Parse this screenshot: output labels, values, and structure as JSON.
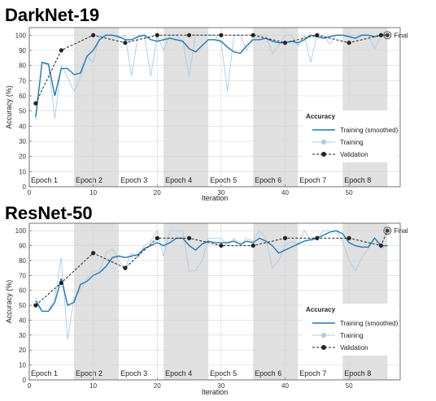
{
  "chart_data": [
    {
      "type": "line",
      "title": "DarkNet-19",
      "xlabel": "Iteration",
      "ylabel": "Accuracy (%)",
      "xlim": [
        0,
        58
      ],
      "ylim": [
        0,
        105
      ],
      "xticks": [
        0,
        10,
        20,
        30,
        40,
        50
      ],
      "yticks": [
        0,
        10,
        20,
        30,
        40,
        50,
        60,
        70,
        80,
        90,
        100
      ],
      "grid": true,
      "epochs": [
        "Epoch 1",
        "Epoch 2",
        "Epoch 3",
        "Epoch 4",
        "Epoch 5",
        "Epoch 6",
        "Epoch 7",
        "Epoch 8"
      ],
      "legend": {
        "title": "Accuracy",
        "position": "lower-right",
        "entries": [
          "Training (smoothed)",
          "Training",
          "Validation"
        ]
      },
      "final_label": "Final",
      "series": [
        {
          "name": "Training (smoothed)",
          "color": "#1f77b4",
          "x": [
            1,
            2,
            3,
            4,
            5,
            6,
            7,
            8,
            9,
            10,
            11,
            12,
            13,
            14,
            15,
            16,
            17,
            18,
            19,
            20,
            21,
            22,
            23,
            24,
            25,
            26,
            27,
            28,
            29,
            30,
            31,
            32,
            33,
            34,
            35,
            36,
            37,
            38,
            39,
            40,
            41,
            42,
            43,
            44,
            45,
            46,
            47,
            48,
            49,
            50,
            51,
            52,
            53,
            54,
            55,
            56
          ],
          "y": [
            46,
            82,
            81,
            60,
            78,
            78,
            74,
            75,
            86,
            90,
            97,
            100,
            100,
            99,
            97,
            97,
            99,
            100,
            97,
            96,
            97,
            98,
            97,
            96,
            91,
            89,
            93,
            97,
            97,
            96,
            92,
            89,
            88,
            93,
            97,
            97,
            98,
            96,
            95,
            95,
            96,
            95,
            97,
            100,
            99,
            98,
            99,
            100,
            100,
            99,
            98,
            100,
            100,
            99,
            100,
            100
          ]
        },
        {
          "name": "Training",
          "color": "#a8cbe8",
          "x": [
            1,
            2,
            3,
            4,
            5,
            6,
            7,
            8,
            9,
            10,
            11,
            12,
            13,
            14,
            15,
            16,
            17,
            18,
            19,
            20,
            21,
            22,
            23,
            24,
            25,
            26,
            27,
            28,
            29,
            30,
            31,
            32,
            33,
            34,
            35,
            36,
            37,
            38,
            39,
            40,
            41,
            42,
            43,
            44,
            45,
            46,
            47,
            48,
            49,
            50,
            51,
            52,
            53,
            54,
            55,
            56
          ],
          "y": [
            44,
            82,
            80,
            45,
            80,
            72,
            63,
            72,
            86,
            82,
            100,
            100,
            100,
            98,
            100,
            73,
            100,
            100,
            73,
            100,
            90,
            100,
            100,
            96,
            73,
            100,
            100,
            100,
            100,
            95,
            63,
            100,
            100,
            90,
            100,
            100,
            100,
            88,
            93,
            100,
            100,
            93,
            100,
            82,
            100,
            100,
            94,
            100,
            100,
            100,
            100,
            100,
            100,
            91,
            100,
            100
          ]
        },
        {
          "name": "Validation",
          "color": "#222222",
          "x": [
            1,
            5,
            10,
            15,
            20,
            25,
            30,
            35,
            40,
            45,
            50,
            55,
            56
          ],
          "y": [
            55,
            90,
            100,
            95,
            100,
            100,
            100,
            100,
            95,
            100,
            95,
            100,
            100
          ]
        }
      ]
    },
    {
      "type": "line",
      "title": "ResNet-50",
      "xlabel": "Iteration",
      "ylabel": "Accuracy (%)",
      "xlim": [
        0,
        58
      ],
      "ylim": [
        0,
        105
      ],
      "xticks": [
        0,
        10,
        20,
        30,
        40,
        50
      ],
      "yticks": [
        0,
        10,
        20,
        30,
        40,
        50,
        60,
        70,
        80,
        90,
        100
      ],
      "grid": true,
      "epochs": [
        "Epoch 1",
        "Epoch 2",
        "Epoch 3",
        "Epoch 4",
        "Epoch 5",
        "Epoch 6",
        "Epoch 7",
        "Epoch 8"
      ],
      "legend": {
        "title": "Accuracy",
        "position": "lower-right",
        "entries": [
          "Training (smoothed)",
          "Training",
          "Validation"
        ]
      },
      "final_label": "Final",
      "series": [
        {
          "name": "Training (smoothed)",
          "color": "#1f77b4",
          "x": [
            1,
            2,
            3,
            4,
            5,
            6,
            7,
            8,
            9,
            10,
            11,
            12,
            13,
            14,
            15,
            16,
            17,
            18,
            19,
            20,
            21,
            22,
            23,
            24,
            25,
            26,
            27,
            28,
            29,
            30,
            31,
            32,
            33,
            34,
            35,
            36,
            37,
            38,
            39,
            40,
            41,
            42,
            43,
            44,
            45,
            46,
            47,
            48,
            49,
            50,
            51,
            52,
            53,
            54,
            55,
            56
          ],
          "y": [
            53,
            46,
            46,
            52,
            68,
            50,
            52,
            64,
            66,
            70,
            72,
            76,
            82,
            83,
            82,
            83,
            84,
            88,
            90,
            92,
            90,
            92,
            95,
            95,
            90,
            87,
            91,
            93,
            92,
            92,
            92,
            93,
            91,
            93,
            92,
            95,
            93,
            90,
            85,
            87,
            89,
            91,
            93,
            94,
            95,
            97,
            99,
            100,
            98,
            92,
            90,
            89,
            89,
            95,
            90,
            90
          ]
        },
        {
          "name": "Training",
          "color": "#a8cbe8",
          "x": [
            1,
            2,
            3,
            4,
            5,
            6,
            7,
            8,
            9,
            10,
            11,
            12,
            13,
            14,
            15,
            16,
            17,
            18,
            19,
            20,
            21,
            22,
            23,
            24,
            25,
            26,
            27,
            28,
            29,
            30,
            31,
            32,
            33,
            34,
            35,
            36,
            37,
            38,
            39,
            40,
            41,
            42,
            43,
            44,
            45,
            46,
            47,
            48,
            49,
            50,
            51,
            52,
            53,
            54,
            55,
            56
          ],
          "y": [
            55,
            46,
            46,
            55,
            82,
            27,
            55,
            60,
            68,
            73,
            73,
            85,
            88,
            80,
            75,
            85,
            82,
            90,
            93,
            100,
            83,
            100,
            100,
            100,
            73,
            73,
            80,
            95,
            95,
            95,
            90,
            95,
            90,
            95,
            93,
            100,
            95,
            75,
            80,
            90,
            93,
            91,
            100,
            93,
            95,
            100,
            100,
            100,
            93,
            80,
            73,
            82,
            88,
            95,
            88,
            90
          ]
        },
        {
          "name": "Validation",
          "color": "#222222",
          "x": [
            1,
            5,
            10,
            15,
            20,
            25,
            30,
            35,
            40,
            45,
            50,
            55,
            56
          ],
          "y": [
            50,
            65,
            85,
            75,
            95,
            95,
            90,
            90,
            95,
            95,
            95,
            90,
            100
          ]
        }
      ]
    }
  ]
}
